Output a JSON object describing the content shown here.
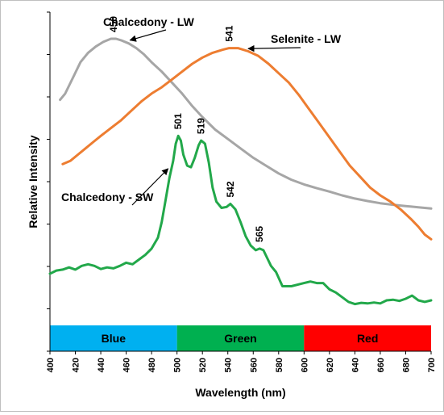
{
  "chart_data": {
    "type": "line",
    "xlabel": "Wavelength (nm)",
    "ylabel": "Relative Intensity",
    "xlim": [
      400,
      700
    ],
    "ylim": [
      0,
      1
    ],
    "x_ticks": [
      400,
      420,
      440,
      460,
      480,
      500,
      520,
      540,
      560,
      580,
      600,
      620,
      640,
      660,
      680,
      700
    ],
    "y_tick_count": 9,
    "grid": false,
    "legend": "none",
    "series": [
      {
        "name": "Chalcedony - LW",
        "color": "#a6a6a6",
        "points": [
          [
            408,
            0.72
          ],
          [
            412,
            0.74
          ],
          [
            418,
            0.79
          ],
          [
            424,
            0.84
          ],
          [
            430,
            0.87
          ],
          [
            436,
            0.89
          ],
          [
            442,
            0.905
          ],
          [
            448,
            0.915
          ],
          [
            452,
            0.915
          ],
          [
            456,
            0.91
          ],
          [
            462,
            0.9
          ],
          [
            468,
            0.885
          ],
          [
            474,
            0.865
          ],
          [
            480,
            0.84
          ],
          [
            488,
            0.81
          ],
          [
            496,
            0.775
          ],
          [
            504,
            0.74
          ],
          [
            512,
            0.7
          ],
          [
            520,
            0.665
          ],
          [
            530,
            0.625
          ],
          [
            540,
            0.595
          ],
          [
            550,
            0.565
          ],
          [
            560,
            0.535
          ],
          [
            570,
            0.51
          ],
          [
            580,
            0.485
          ],
          [
            590,
            0.465
          ],
          [
            600,
            0.45
          ],
          [
            610,
            0.438
          ],
          [
            620,
            0.427
          ],
          [
            630,
            0.415
          ],
          [
            640,
            0.405
          ],
          [
            650,
            0.397
          ],
          [
            660,
            0.39
          ],
          [
            670,
            0.385
          ],
          [
            680,
            0.381
          ],
          [
            690,
            0.377
          ],
          [
            700,
            0.373
          ]
        ]
      },
      {
        "name": "Selenite - LW",
        "color": "#ed7d31",
        "points": [
          [
            410,
            0.515
          ],
          [
            416,
            0.525
          ],
          [
            422,
            0.545
          ],
          [
            428,
            0.565
          ],
          [
            434,
            0.585
          ],
          [
            440,
            0.605
          ],
          [
            448,
            0.63
          ],
          [
            456,
            0.655
          ],
          [
            464,
            0.685
          ],
          [
            472,
            0.715
          ],
          [
            480,
            0.74
          ],
          [
            488,
            0.76
          ],
          [
            496,
            0.785
          ],
          [
            504,
            0.81
          ],
          [
            512,
            0.835
          ],
          [
            520,
            0.855
          ],
          [
            528,
            0.87
          ],
          [
            536,
            0.88
          ],
          [
            541,
            0.885
          ],
          [
            548,
            0.885
          ],
          [
            556,
            0.875
          ],
          [
            564,
            0.86
          ],
          [
            572,
            0.835
          ],
          [
            580,
            0.805
          ],
          [
            588,
            0.775
          ],
          [
            596,
            0.735
          ],
          [
            604,
            0.69
          ],
          [
            612,
            0.645
          ],
          [
            620,
            0.6
          ],
          [
            628,
            0.555
          ],
          [
            636,
            0.51
          ],
          [
            644,
            0.475
          ],
          [
            652,
            0.44
          ],
          [
            660,
            0.415
          ],
          [
            668,
            0.395
          ],
          [
            676,
            0.37
          ],
          [
            684,
            0.34
          ],
          [
            690,
            0.315
          ],
          [
            695,
            0.29
          ],
          [
            700,
            0.275
          ]
        ]
      },
      {
        "name": "Chalcedony - SW",
        "color": "#22a84a",
        "points": [
          [
            400,
            0.165
          ],
          [
            405,
            0.175
          ],
          [
            410,
            0.178
          ],
          [
            415,
            0.185
          ],
          [
            420,
            0.178
          ],
          [
            425,
            0.19
          ],
          [
            430,
            0.195
          ],
          [
            435,
            0.19
          ],
          [
            440,
            0.18
          ],
          [
            445,
            0.185
          ],
          [
            450,
            0.182
          ],
          [
            455,
            0.19
          ],
          [
            460,
            0.2
          ],
          [
            465,
            0.195
          ],
          [
            470,
            0.21
          ],
          [
            475,
            0.225
          ],
          [
            480,
            0.245
          ],
          [
            485,
            0.28
          ],
          [
            488,
            0.33
          ],
          [
            491,
            0.4
          ],
          [
            494,
            0.47
          ],
          [
            497,
            0.525
          ],
          [
            499,
            0.58
          ],
          [
            501,
            0.605
          ],
          [
            503,
            0.59
          ],
          [
            505,
            0.545
          ],
          [
            508,
            0.51
          ],
          [
            511,
            0.505
          ],
          [
            514,
            0.535
          ],
          [
            517,
            0.575
          ],
          [
            519,
            0.59
          ],
          [
            522,
            0.58
          ],
          [
            525,
            0.52
          ],
          [
            528,
            0.44
          ],
          [
            531,
            0.395
          ],
          [
            535,
            0.375
          ],
          [
            539,
            0.378
          ],
          [
            542,
            0.388
          ],
          [
            546,
            0.37
          ],
          [
            550,
            0.33
          ],
          [
            554,
            0.285
          ],
          [
            558,
            0.255
          ],
          [
            562,
            0.24
          ],
          [
            565,
            0.245
          ],
          [
            568,
            0.24
          ],
          [
            571,
            0.215
          ],
          [
            574,
            0.19
          ],
          [
            578,
            0.17
          ],
          [
            583,
            0.125
          ],
          [
            590,
            0.125
          ],
          [
            600,
            0.135
          ],
          [
            605,
            0.14
          ],
          [
            610,
            0.135
          ],
          [
            615,
            0.135
          ],
          [
            620,
            0.115
          ],
          [
            625,
            0.105
          ],
          [
            630,
            0.09
          ],
          [
            635,
            0.075
          ],
          [
            640,
            0.068
          ],
          [
            645,
            0.072
          ],
          [
            650,
            0.07
          ],
          [
            655,
            0.073
          ],
          [
            660,
            0.07
          ],
          [
            665,
            0.08
          ],
          [
            670,
            0.082
          ],
          [
            675,
            0.078
          ],
          [
            680,
            0.085
          ],
          [
            685,
            0.095
          ],
          [
            690,
            0.08
          ],
          [
            695,
            0.075
          ],
          [
            700,
            0.08
          ]
        ]
      }
    ],
    "annotations": [
      {
        "text": "Chalcedony - LW",
        "series": 0
      },
      {
        "text": "Selenite - LW",
        "series": 1
      },
      {
        "text": "Chalcedony - SW",
        "series": 2
      }
    ],
    "peak_labels": [
      {
        "text": "450",
        "x": 450,
        "y": 0.915
      },
      {
        "text": "541",
        "x": 541,
        "y": 0.885
      },
      {
        "text": "501",
        "x": 501,
        "y": 0.605
      },
      {
        "text": "519",
        "x": 519,
        "y": 0.59
      },
      {
        "text": "542",
        "x": 542,
        "y": 0.388
      },
      {
        "text": "565",
        "x": 565,
        "y": 0.245
      }
    ],
    "color_bands": [
      {
        "label": "Blue",
        "from": 400,
        "to": 500,
        "color": "#00b0f0"
      },
      {
        "label": "Green",
        "from": 500,
        "to": 600,
        "color": "#00b050"
      },
      {
        "label": "Red",
        "from": 600,
        "to": 700,
        "color": "#ff0000"
      }
    ]
  }
}
